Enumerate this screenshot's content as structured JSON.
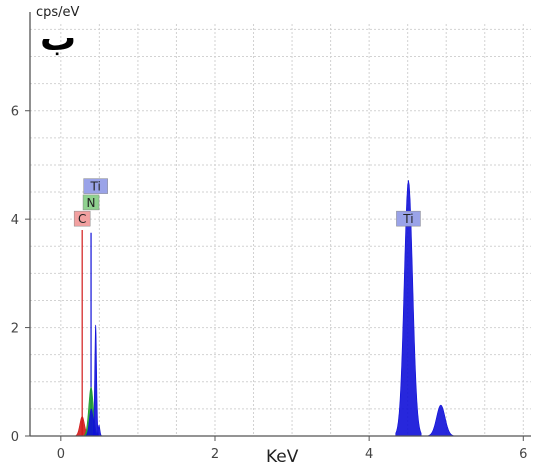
{
  "chart_data": {
    "type": "area",
    "panel_label": "ب",
    "ylabel": "cps/eV",
    "xlabel": "KeV",
    "xlim": [
      -0.4,
      6.1
    ],
    "ylim": [
      0,
      7.6
    ],
    "x_ticks": [
      0,
      2,
      4,
      6
    ],
    "y_ticks": [
      0,
      2,
      4,
      6
    ],
    "x_tick_labels": [
      "0",
      "2",
      "4",
      "6"
    ],
    "y_tick_labels": [
      "0",
      "2",
      "4",
      "6"
    ],
    "grid": true,
    "series": [
      {
        "name": "C",
        "color": "#d11a1a",
        "peaks": [
          {
            "center": 0.277,
            "height": 0.36,
            "width": 0.03
          }
        ]
      },
      {
        "name": "N",
        "color": "#1e9e2e",
        "peaks": [
          {
            "center": 0.392,
            "height": 0.9,
            "width": 0.03
          }
        ]
      },
      {
        "name": "Ti",
        "color": "#1010d8",
        "peaks": [
          {
            "center": 0.395,
            "height": 0.5,
            "width": 0.025
          },
          {
            "center": 0.452,
            "height": 2.05,
            "width": 0.012
          },
          {
            "center": 0.495,
            "height": 0.2,
            "width": 0.012
          },
          {
            "center": 4.51,
            "height": 4.72,
            "width": 0.055
          },
          {
            "center": 4.93,
            "height": 0.57,
            "width": 0.055
          }
        ]
      }
    ],
    "annotations": [
      {
        "label": "Ti",
        "energy": 0.452,
        "level": 4.6,
        "color": "#9aa3e8"
      },
      {
        "label": "N",
        "energy": 0.392,
        "level": 4.3,
        "color": "#8fd28f"
      },
      {
        "label": "C",
        "energy": 0.277,
        "level": 4.0,
        "color": "#f2a0a0"
      },
      {
        "label": "Ti",
        "energy": 4.51,
        "level": 4.0,
        "color": "#9aa3e8"
      }
    ],
    "marker_lines": [
      {
        "energy": 0.277,
        "level": 3.8,
        "color": "#d11a1a"
      },
      {
        "energy": 0.392,
        "level": 3.75,
        "color": "#1010d8"
      }
    ]
  }
}
